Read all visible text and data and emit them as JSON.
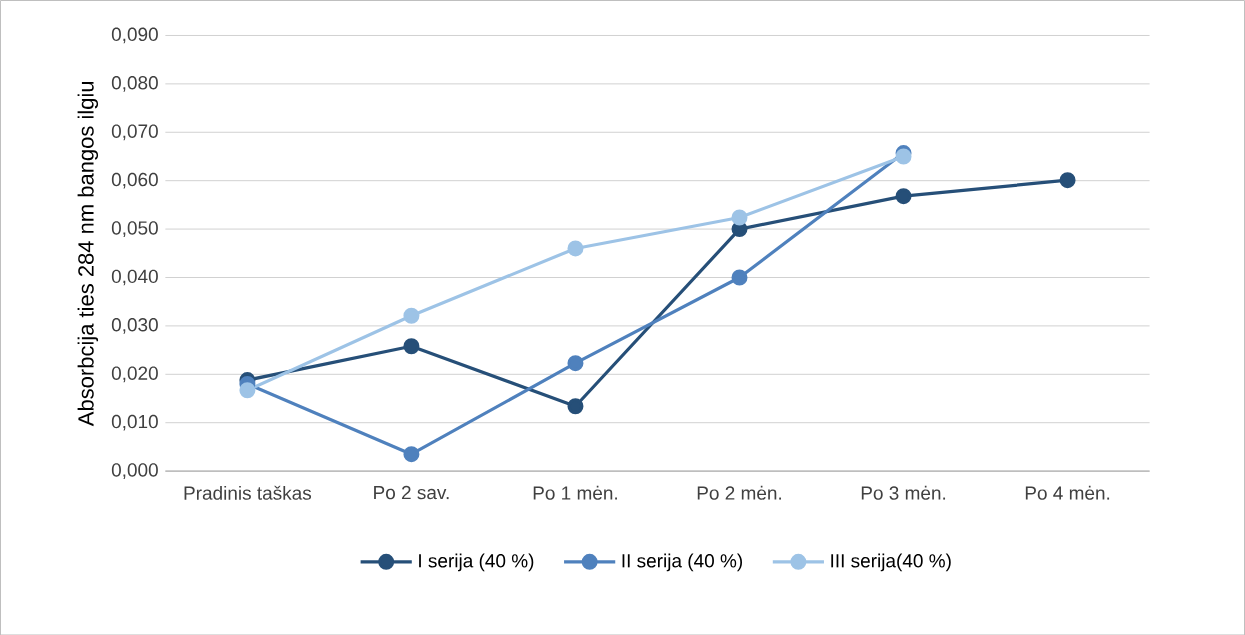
{
  "chart_data": {
    "type": "line",
    "ylabel": "Absorbcija ties 284 nm bangos ilgiu",
    "categories": [
      "Pradinis taškas",
      "Po 2 sav.",
      "Po 1 mėn.",
      "Po 2 mėn.",
      "Po 3 mėn.",
      "Po 4 mėn."
    ],
    "series": [
      {
        "name": "I serija (40 %)",
        "color": "#264f78",
        "values": [
          0.0188,
          0.0258,
          0.0134,
          0.05,
          0.0568,
          0.0601
        ]
      },
      {
        "name": "II serija (40 %)",
        "color": "#4f81bd",
        "values": [
          0.018,
          0.0035,
          0.0223,
          0.04,
          0.0657,
          null
        ]
      },
      {
        "name": "III serija(40 %)",
        "color": "#9dc3e6",
        "values": [
          0.0167,
          0.0321,
          0.046,
          0.0524,
          0.065,
          null
        ]
      }
    ],
    "ylim": [
      0,
      0.09
    ],
    "yticks": [
      {
        "value": 0,
        "label": "0,000"
      },
      {
        "value": 0.01,
        "label": "0,010"
      },
      {
        "value": 0.02,
        "label": "0,020"
      },
      {
        "value": 0.03,
        "label": "0,030"
      },
      {
        "value": 0.04,
        "label": "0,040"
      },
      {
        "value": 0.05,
        "label": "0,050"
      },
      {
        "value": 0.06,
        "label": "0,060"
      },
      {
        "value": 0.07,
        "label": "0,070"
      },
      {
        "value": 0.08,
        "label": "0,080"
      },
      {
        "value": 0.09,
        "label": "0,090"
      }
    ],
    "grid": "y",
    "legend": "bottom",
    "marker": "circle",
    "line_style": "solid"
  }
}
